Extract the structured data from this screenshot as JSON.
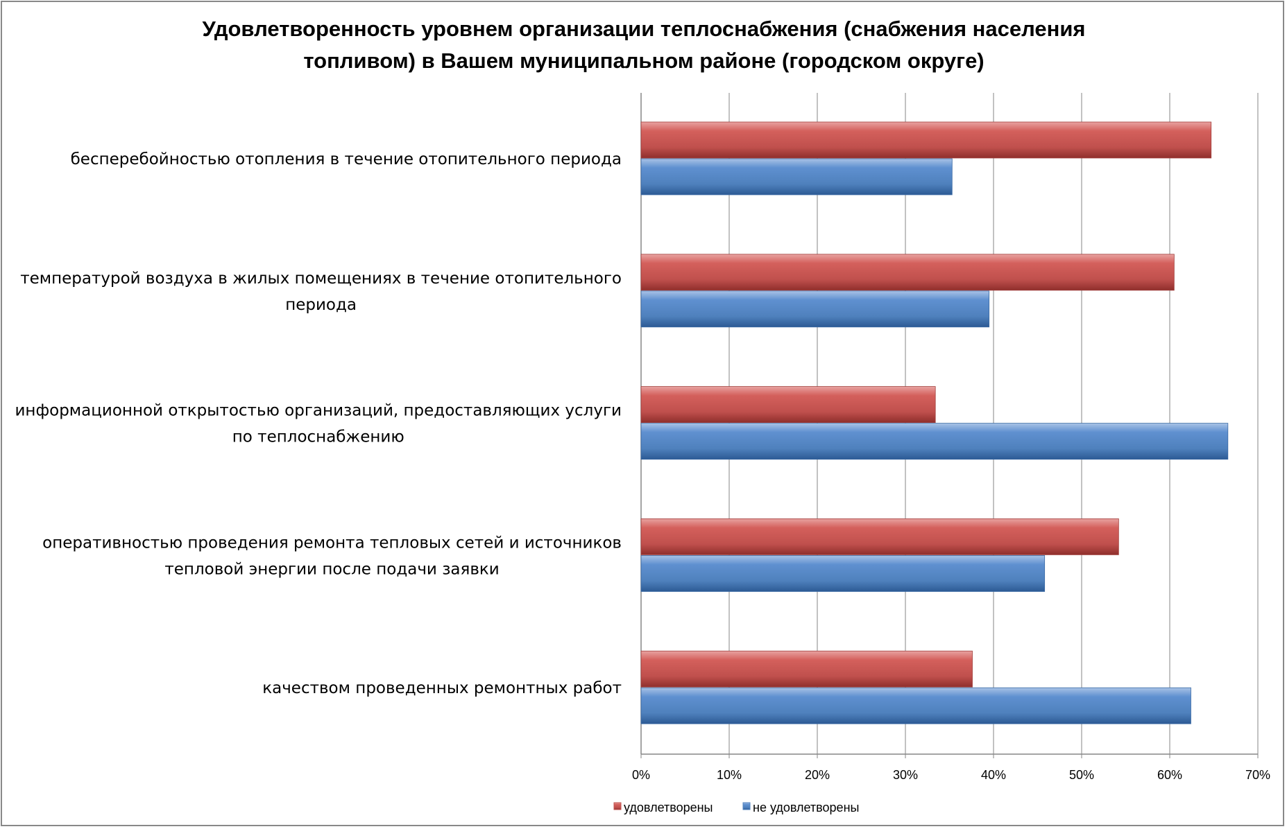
{
  "chart_data": {
    "type": "bar",
    "orientation": "horizontal",
    "title": [
      "Удовлетворенность уровнем организации теплоснабжения (снабжения населения",
      "топливом) в Вашем муниципальном районе (городском округе)"
    ],
    "categories": [
      [
        "бесперебойностью  отопления в течение отопительного периода"
      ],
      [
        "температурой  воздуха в жилых помещениях в течение отопительного",
        "периода"
      ],
      [
        "информационной открытостью  организаций, предоставляющих услуги",
        "по теплоснабжению"
      ],
      [
        "оперативностью проведения ремонта тепловых сетей и источников",
        "тепловой энергии после подачи заявки"
      ],
      [
        "качеством проведенных ремонтных работ"
      ]
    ],
    "series": [
      {
        "name": "удовлетворены",
        "color": "#c0504d",
        "values": [
          64.7,
          60.5,
          33.4,
          54.2,
          37.6
        ]
      },
      {
        "name": "не удовлетворены",
        "color": "#4f81bd",
        "values": [
          35.3,
          39.5,
          66.6,
          45.8,
          62.4
        ]
      }
    ],
    "xlim": [
      0,
      70
    ],
    "xticks": [
      "0%",
      "10%",
      "20%",
      "30%",
      "40%",
      "50%",
      "60%",
      "70%"
    ],
    "grid": true,
    "legend": "bottom",
    "xlabel": "",
    "ylabel": ""
  }
}
